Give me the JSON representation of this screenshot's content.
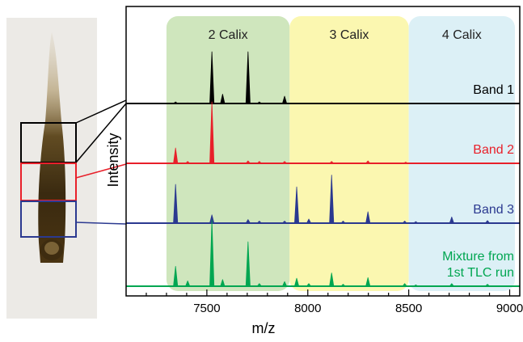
{
  "chart_data": {
    "type": "line",
    "title": "",
    "xlabel": "m/z",
    "ylabel": "Intensity",
    "xlim": [
      7100,
      9050
    ],
    "x_ticks": [
      7500,
      8000,
      8500,
      9000
    ],
    "grid": false,
    "regions": [
      {
        "label": "2 Calix",
        "x_range": [
          7300,
          7910
        ],
        "color": "#cfe6bd"
      },
      {
        "label": "3 Calix",
        "x_range": [
          7910,
          8500
        ],
        "color": "#fbf7b0"
      },
      {
        "label": "4 Calix",
        "x_range": [
          8500,
          9050
        ],
        "color": "#dcf0f6"
      }
    ],
    "series": [
      {
        "name": "Band 1",
        "label_lines": [
          "Band 1"
        ],
        "color": "#000000",
        "peaks": [
          [
            7345,
            0.03
          ],
          [
            7525,
            1.0
          ],
          [
            7578,
            0.18
          ],
          [
            7704,
            1.0
          ],
          [
            7760,
            0.03
          ],
          [
            7885,
            0.14
          ]
        ]
      },
      {
        "name": "Band 2",
        "label_lines": [
          "Band 2"
        ],
        "color": "#e8202a",
        "peaks": [
          [
            7345,
            0.25
          ],
          [
            7405,
            0.03
          ],
          [
            7525,
            1.0
          ],
          [
            7704,
            0.04
          ],
          [
            7760,
            0.03
          ],
          [
            7885,
            0.03
          ],
          [
            8118,
            0.03
          ],
          [
            8298,
            0.04
          ],
          [
            8485,
            0.02
          ]
        ]
      },
      {
        "name": "Band 3",
        "label_lines": [
          "Band 3"
        ],
        "color": "#2b3990",
        "peaks": [
          [
            7345,
            0.75
          ],
          [
            7525,
            0.16
          ],
          [
            7704,
            0.07
          ],
          [
            7760,
            0.04
          ],
          [
            7885,
            0.04
          ],
          [
            7945,
            0.7
          ],
          [
            8005,
            0.08
          ],
          [
            8118,
            0.93
          ],
          [
            8175,
            0.04
          ],
          [
            8298,
            0.22
          ],
          [
            8480,
            0.04
          ],
          [
            8535,
            0.03
          ],
          [
            8713,
            0.12
          ],
          [
            8890,
            0.05
          ]
        ]
      },
      {
        "name": "Mixture from 1st TLC run",
        "label_lines": [
          "Mixture from",
          "1st TLC run"
        ],
        "color": "#00a651",
        "peaks": [
          [
            7345,
            0.3
          ],
          [
            7405,
            0.08
          ],
          [
            7525,
            1.0
          ],
          [
            7578,
            0.1
          ],
          [
            7704,
            0.67
          ],
          [
            7760,
            0.04
          ],
          [
            7885,
            0.07
          ],
          [
            7945,
            0.12
          ],
          [
            8005,
            0.04
          ],
          [
            8118,
            0.2
          ],
          [
            8175,
            0.03
          ],
          [
            8298,
            0.13
          ],
          [
            8480,
            0.04
          ],
          [
            8535,
            0.02
          ],
          [
            8713,
            0.04
          ],
          [
            8890,
            0.03
          ]
        ]
      }
    ]
  }
}
